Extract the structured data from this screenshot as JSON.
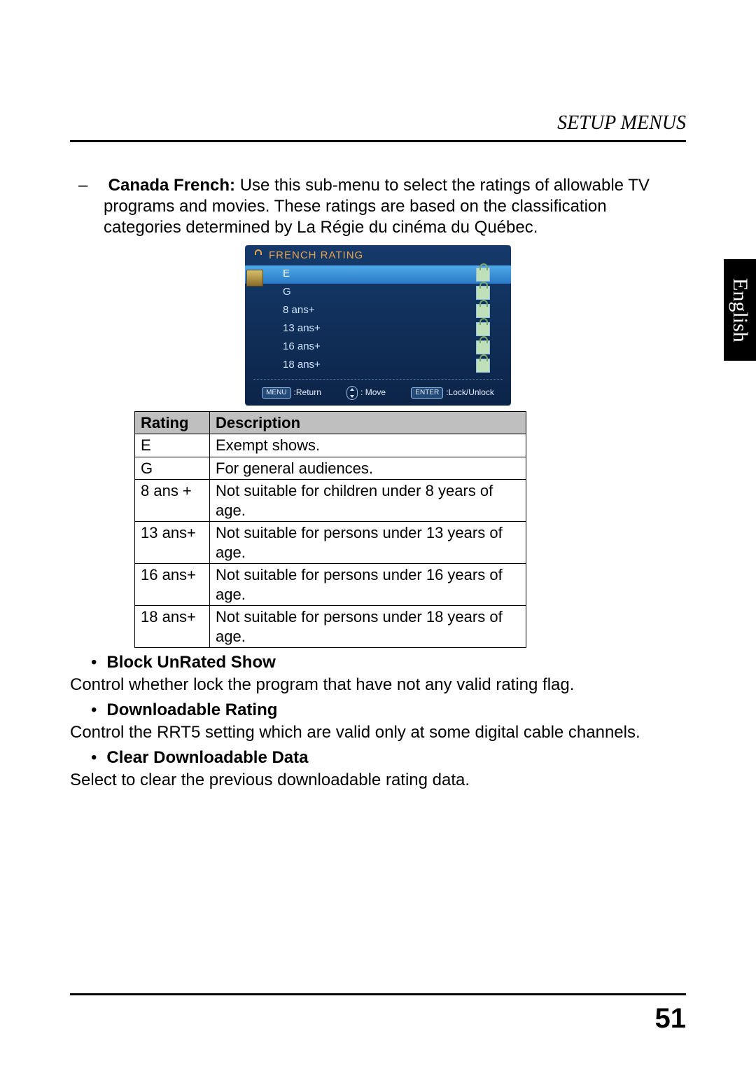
{
  "header": {
    "section_title": "SETUP MENUS"
  },
  "side_tab": {
    "label": "English"
  },
  "intro": {
    "bold_lead": "Canada French:",
    "text": " Use this sub-menu to select the ratings of allowable TV programs and movies. These ratings are based on the classification categories determined by La Régie du cinéma du Québec."
  },
  "screenshot": {
    "title": "FRENCH RATING",
    "title_color": "#e9a24a",
    "bg_gradient": [
      "#153a6b",
      "#0c2448"
    ],
    "selected_gradient": [
      "#4fa9e8",
      "#2a7ac6"
    ],
    "lock_bg": "#bfe0b8",
    "rows": [
      {
        "label": "E",
        "selected": true
      },
      {
        "label": "G",
        "selected": false
      },
      {
        "label": "8 ans+",
        "selected": false
      },
      {
        "label": "13 ans+",
        "selected": false
      },
      {
        "label": "16 ans+",
        "selected": false
      },
      {
        "label": "18 ans+",
        "selected": false
      }
    ],
    "footer": {
      "menu_chip": "MENU",
      "return_label": ":Return",
      "move_label": ": Move",
      "enter_chip": "ENTER",
      "lock_label": ":Lock/Unlock"
    }
  },
  "rating_table": {
    "header_bg": "#bfbfbf",
    "columns": [
      "Rating",
      "Description"
    ],
    "rows": [
      [
        "E",
        "Exempt shows."
      ],
      [
        "G",
        "For general audiences."
      ],
      [
        "8 ans +",
        "Not suitable for children under 8 years of age."
      ],
      [
        "13 ans+",
        "Not suitable for persons under 13 years of age."
      ],
      [
        "16 ans+",
        "Not suitable for persons under 16 years of age."
      ],
      [
        "18 ans+",
        "Not suitable for persons under 18 years of age."
      ]
    ]
  },
  "bullets": {
    "items": [
      {
        "title": "Block UnRated Show",
        "text": "Control whether lock the program that have not any valid rating flag."
      },
      {
        "title": "Downloadable Rating",
        "text": "Control the RRT5 setting which are valid only at some digital cable channels."
      },
      {
        "title": "Clear Downloadable Data",
        "text": "Select to clear the previous downloadable rating data."
      }
    ]
  },
  "page_number": "51"
}
